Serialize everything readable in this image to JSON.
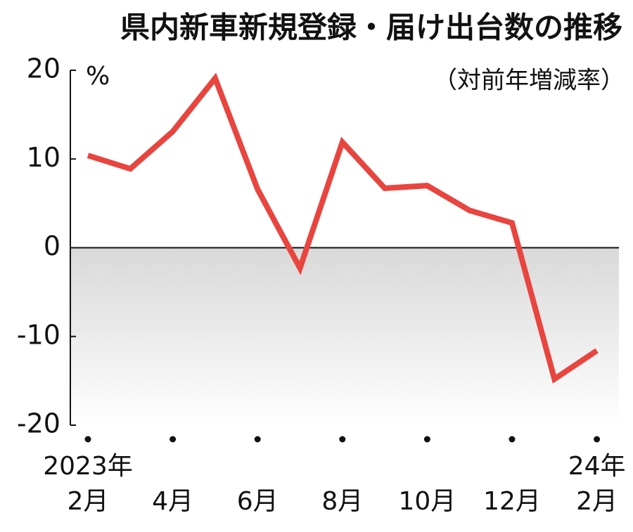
{
  "chart_data": {
    "type": "line",
    "title": "県内新車新規登録・届け出台数の推移",
    "subtitle": "（対前年増減率）",
    "y_unit": "%",
    "categories": [
      "2023年\n2月",
      null,
      "4月",
      null,
      "6月",
      null,
      "8月",
      null,
      "10月",
      null,
      "12月",
      null,
      "24年\n2月"
    ],
    "series": [
      {
        "name": null,
        "color": "#e8453f",
        "values": [
          10.4,
          8.9,
          13.1,
          19.1,
          6.6,
          -2.3,
          11.9,
          6.7,
          7.0,
          4.2,
          2.8,
          -14.8,
          -11.6
        ]
      }
    ],
    "ylim": [
      -20,
      20
    ],
    "yticks": [
      20,
      10,
      0,
      -10,
      -20
    ]
  }
}
